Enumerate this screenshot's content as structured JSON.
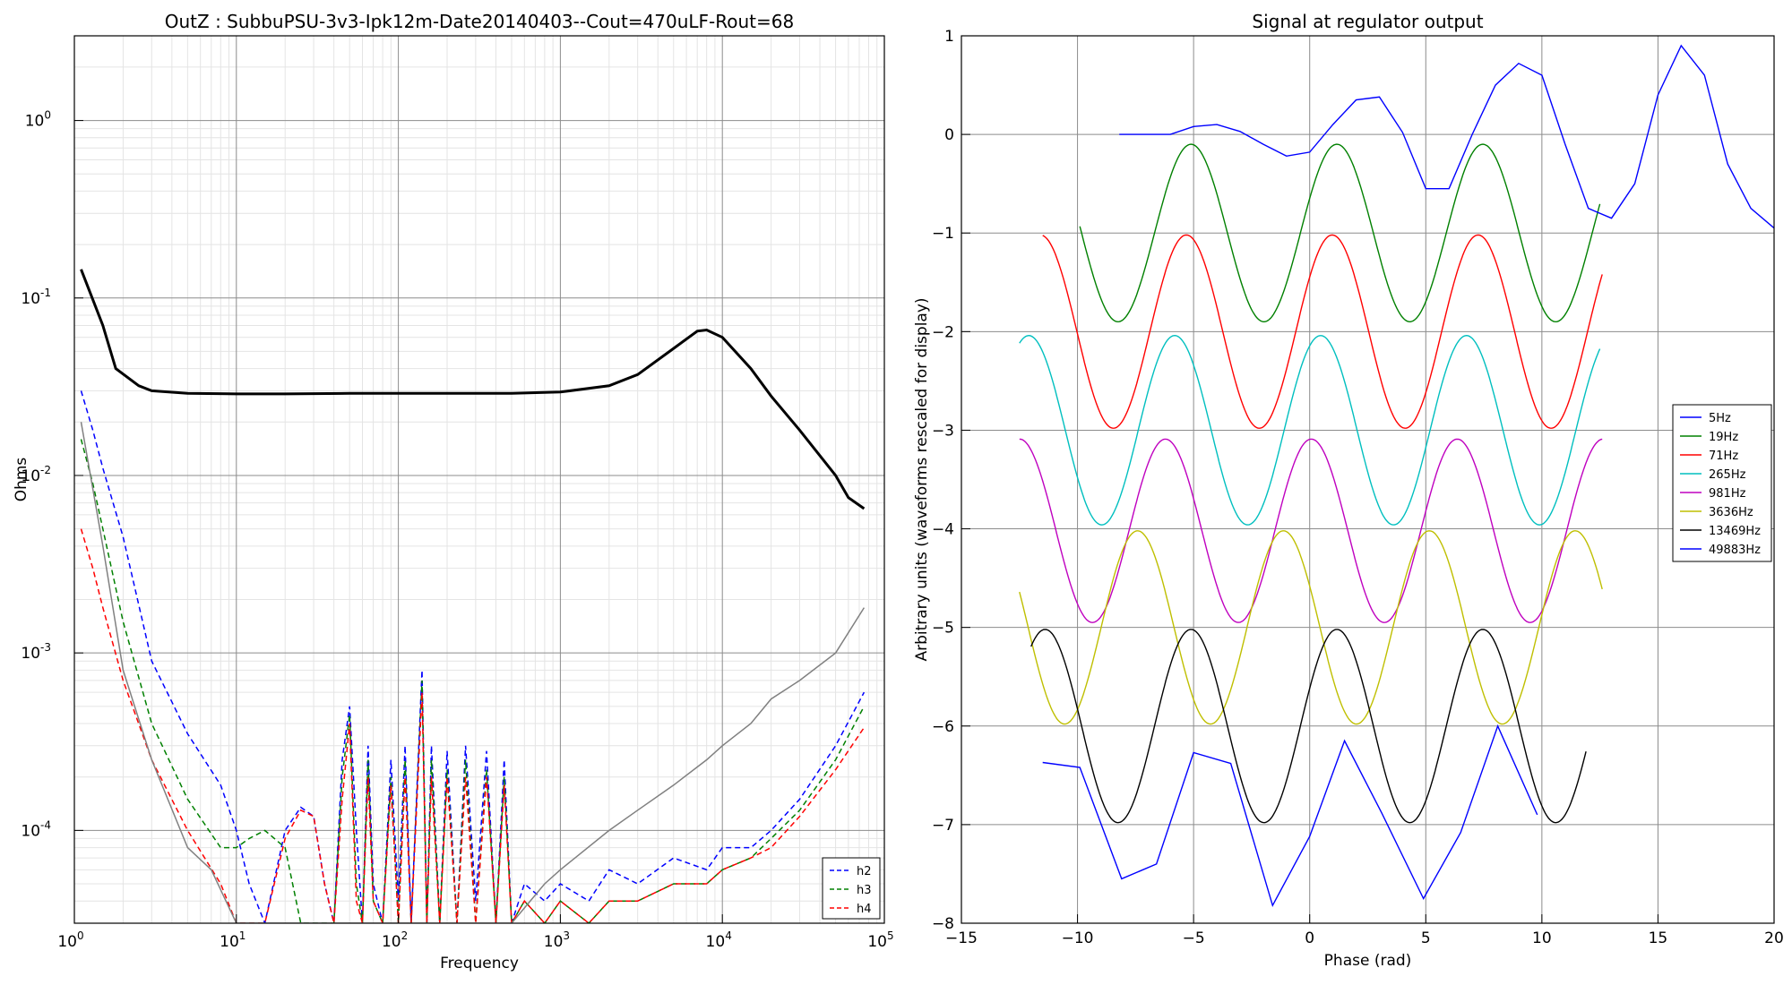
{
  "chart_data": [
    {
      "type": "line",
      "title": "OutZ : SubbuPSU-3v3-Ipk12m-Date20140403--Cout=470uLF-Rout=68",
      "xlabel": "Frequency",
      "ylabel": "Ohms",
      "xscale": "log",
      "yscale": "log",
      "xlim": [
        1,
        100000
      ],
      "ylim": [
        3e-05,
        3
      ],
      "grid": true,
      "x_tick_labels": [
        {
          "base": "10",
          "exp": "0"
        },
        {
          "base": "10",
          "exp": "1"
        },
        {
          "base": "10",
          "exp": "2"
        },
        {
          "base": "10",
          "exp": "3"
        },
        {
          "base": "10",
          "exp": "4"
        },
        {
          "base": "10",
          "exp": "5"
        }
      ],
      "y_tick_labels": [
        {
          "base": "10",
          "exp": "-4"
        },
        {
          "base": "10",
          "exp": "-3"
        },
        {
          "base": "10",
          "exp": "-2"
        },
        {
          "base": "10",
          "exp": "-1"
        },
        {
          "base": "10",
          "exp": "0"
        }
      ],
      "legend_position": "lower-right",
      "series": [
        {
          "color": "#000000",
          "style": "solid",
          "x": [
            1.1,
            1.5,
            1.8,
            2.5,
            3,
            5,
            10,
            20,
            50,
            100,
            200,
            500,
            1000,
            2000,
            3000,
            5000,
            7000,
            8000,
            10000,
            15000,
            20000,
            30000,
            50000,
            60000,
            75000
          ],
          "y": [
            0.145,
            0.07,
            0.04,
            0.032,
            0.03,
            0.029,
            0.0288,
            0.0288,
            0.029,
            0.029,
            0.029,
            0.029,
            0.0295,
            0.032,
            0.037,
            0.052,
            0.065,
            0.066,
            0.06,
            0.04,
            0.028,
            0.018,
            0.01,
            0.0075,
            0.0065
          ]
        },
        {
          "name": "h2",
          "color": "#0000ff",
          "style": "dashed",
          "x": [
            1.1,
            1.3,
            1.5,
            2,
            3,
            5,
            8,
            10,
            12,
            15,
            20,
            25,
            30,
            35,
            40,
            45,
            50,
            55,
            60,
            65,
            70,
            80,
            90,
            100,
            110,
            120,
            140,
            150,
            160,
            180,
            200,
            230,
            260,
            300,
            350,
            400,
            450,
            500,
            600,
            800,
            1000,
            1500,
            2000,
            3000,
            5000,
            8000,
            10000,
            15000,
            20000,
            30000,
            50000,
            75000
          ],
          "y": [
            0.03,
            0.018,
            0.011,
            0.0045,
            0.0009,
            0.00035,
            0.00018,
            0.0001,
            5e-05,
            3e-05,
            0.0001,
            0.000135,
            0.00012,
            5e-05,
            3e-05,
            0.00025,
            0.0005,
            0.0001,
            3e-05,
            0.0003,
            5e-05,
            3e-05,
            0.00025,
            4e-05,
            0.0003,
            3e-05,
            0.0008,
            3e-05,
            0.0003,
            3e-05,
            0.00028,
            3e-05,
            0.0003,
            4e-05,
            0.00028,
            3e-05,
            0.00025,
            3e-05,
            5e-05,
            4e-05,
            5e-05,
            4e-05,
            6e-05,
            5e-05,
            7e-05,
            6e-05,
            8e-05,
            8e-05,
            0.0001,
            0.00015,
            0.0003,
            0.0006
          ]
        },
        {
          "name": "h3",
          "color": "#008000",
          "style": "dashed",
          "x": [
            1.1,
            1.3,
            1.5,
            2,
            3,
            5,
            8,
            10,
            12,
            15,
            20,
            25,
            30,
            35,
            40,
            45,
            50,
            55,
            60,
            65,
            70,
            80,
            90,
            100,
            110,
            120,
            140,
            150,
            160,
            180,
            200,
            230,
            260,
            300,
            350,
            400,
            450,
            500,
            600,
            800,
            1000,
            1500,
            2000,
            3000,
            5000,
            8000,
            10000,
            15000,
            20000,
            30000,
            50000,
            75000
          ],
          "y": [
            0.016,
            0.009,
            0.005,
            0.0015,
            0.0004,
            0.00015,
            8e-05,
            8e-05,
            9e-05,
            0.0001,
            8e-05,
            3e-05,
            3e-05,
            3e-05,
            3e-05,
            0.0002,
            0.00045,
            5e-05,
            3e-05,
            0.00025,
            4e-05,
            3e-05,
            0.0002,
            3e-05,
            0.00025,
            3e-05,
            0.0007,
            3e-05,
            0.00025,
            3e-05,
            0.00022,
            3e-05,
            0.00025,
            3e-05,
            0.00022,
            3e-05,
            0.0002,
            3e-05,
            4e-05,
            3e-05,
            4e-05,
            3e-05,
            4e-05,
            4e-05,
            5e-05,
            5e-05,
            6e-05,
            7e-05,
            9e-05,
            0.00013,
            0.00025,
            0.0005
          ]
        },
        {
          "name": "h4",
          "color": "#ff0000",
          "style": "dashed",
          "x": [
            1.1,
            1.3,
            1.5,
            2,
            3,
            5,
            8,
            10,
            12,
            15,
            20,
            25,
            30,
            35,
            40,
            45,
            50,
            55,
            60,
            65,
            70,
            80,
            90,
            100,
            110,
            120,
            140,
            150,
            160,
            180,
            200,
            230,
            260,
            300,
            350,
            400,
            450,
            500,
            600,
            800,
            1000,
            1500,
            2000,
            3000,
            5000,
            8000,
            10000,
            15000,
            20000,
            30000,
            50000,
            75000
          ],
          "y": [
            0.005,
            0.003,
            0.0018,
            0.0007,
            0.00025,
            0.0001,
            5e-05,
            3e-05,
            3e-05,
            3e-05,
            9e-05,
            0.00013,
            0.00012,
            5e-05,
            3e-05,
            0.00015,
            0.0004,
            4e-05,
            3e-05,
            0.0002,
            4e-05,
            3e-05,
            0.00018,
            3e-05,
            0.0002,
            3e-05,
            0.0006,
            3e-05,
            0.0002,
            3e-05,
            0.0002,
            3e-05,
            0.0002,
            3e-05,
            0.0002,
            3e-05,
            0.00018,
            3e-05,
            4e-05,
            3e-05,
            4e-05,
            3e-05,
            4e-05,
            4e-05,
            5e-05,
            5e-05,
            6e-05,
            7e-05,
            8e-05,
            0.00012,
            0.00022,
            0.00038
          ]
        },
        {
          "color": "#808080",
          "style": "solid",
          "x": [
            1.1,
            1.5,
            2,
            3,
            5,
            7,
            10,
            12,
            500,
            800,
            1000,
            2000,
            3000,
            5000,
            8000,
            10000,
            15000,
            20000,
            30000,
            50000,
            75000
          ],
          "y": [
            0.02,
            0.004,
            0.0008,
            0.00025,
            8e-05,
            6e-05,
            3e-05,
            3e-05,
            3e-05,
            5e-05,
            6e-05,
            0.0001,
            0.00013,
            0.00018,
            0.00025,
            0.0003,
            0.0004,
            0.00055,
            0.0007,
            0.001,
            0.0018
          ]
        }
      ]
    },
    {
      "type": "line",
      "title": "Signal at regulator output",
      "xlabel": "Phase (rad)",
      "ylabel": "Arbitrary units (waveforms rescaled for display)",
      "xlim": [
        -15,
        20
      ],
      "ylim": [
        -8,
        1
      ],
      "x_tick_labels": [
        "−15",
        "−10",
        "−5",
        "0",
        "5",
        "10",
        "15",
        "20"
      ],
      "y_tick_labels": [
        "−8",
        "−7",
        "−6",
        "−5",
        "−4",
        "−3",
        "−2",
        "−1",
        "0",
        "1"
      ],
      "grid": true,
      "legend_position": "center-right",
      "series": [
        {
          "name": "5Hz",
          "color": "#0000ff",
          "kind": "points",
          "x": [
            -11.5,
            -9.9,
            -8.1,
            -6.6,
            -5.0,
            -3.4,
            -1.6,
            0,
            1.5,
            3.1,
            4.9,
            6.5,
            8.1,
            9.8
          ],
          "y": [
            -6.37,
            -6.42,
            -7.55,
            -7.4,
            -6.27,
            -6.38,
            -7.82,
            -7.12,
            -6.15,
            -6.88,
            -7.75,
            -7.08,
            -6.0,
            -6.9
          ]
        },
        {
          "name": "19Hz",
          "color": "#008000",
          "kind": "wave",
          "center": -1.0,
          "amp": 0.9,
          "freq": 1,
          "phase": 0.4,
          "xmin": -9.9,
          "xmax": 12.5
        },
        {
          "name": "71Hz",
          "color": "#ff0000",
          "kind": "wave",
          "center": -2.0,
          "amp": 0.98,
          "freq": 1,
          "phase": 0.6,
          "xmin": -11.5,
          "xmax": 12.6
        },
        {
          "name": "265Hz",
          "color": "#00bfbf",
          "kind": "wave",
          "center": -3.0,
          "amp": 0.96,
          "freq": 1,
          "phase": 1.1,
          "xmin": -12.5,
          "xmax": 12.5
        },
        {
          "name": "981Hz",
          "color": "#bf00bf",
          "kind": "wave",
          "center": -4.02,
          "amp": 0.93,
          "freq": 1,
          "phase": 1.5,
          "xmin": -12.5,
          "xmax": 12.6
        },
        {
          "name": "3636Hz",
          "color": "#bfbf00",
          "kind": "wave",
          "center": -5.0,
          "amp": 0.98,
          "freq": 1,
          "phase": 2.7,
          "xmin": -12.5,
          "xmax": 12.6
        },
        {
          "name": "13469Hz",
          "color": "#000000",
          "kind": "wave",
          "center": -6.0,
          "amp": 0.98,
          "freq": 1,
          "phase": 0.4,
          "xmin": -12.0,
          "xmax": 11.9
        },
        {
          "name": "49883Hz",
          "color": "#0000ff",
          "kind": "points",
          "x": [
            -8.2,
            -7,
            -6,
            -5,
            -4,
            -3,
            -2,
            -1,
            0,
            1,
            2,
            3,
            4,
            5,
            6,
            7,
            8,
            9,
            10,
            11,
            12,
            13,
            14,
            15,
            16,
            17,
            18,
            19,
            20
          ],
          "y": [
            0.0,
            0.0,
            0.0,
            0.08,
            0.1,
            0.03,
            -0.1,
            -0.22,
            -0.18,
            0.1,
            0.35,
            0.38,
            0.02,
            -0.55,
            -0.55,
            0.0,
            0.5,
            0.72,
            0.6,
            -0.1,
            -0.75,
            -0.85,
            -0.5,
            0.4,
            0.9,
            0.6,
            -0.3,
            -0.75,
            -0.95
          ]
        }
      ]
    }
  ]
}
